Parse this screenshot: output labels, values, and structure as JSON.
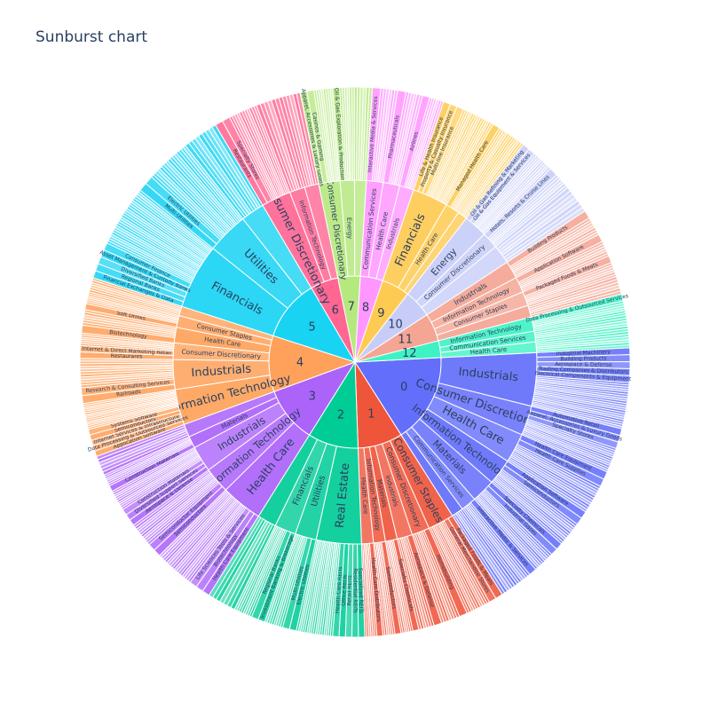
{
  "chart_data": {
    "type": "sunburst",
    "title": "Sunburst chart",
    "nodes": [
      {
        "label": "0",
        "value": 16,
        "color": "#636efa",
        "children": [
          {
            "label": "Industrials",
            "value": 4.5,
            "children": [
              "Industrial Machinery",
              "Building Products",
              "Aerospace & Defense",
              "Trading Companies & Distributors",
              "Electrical Components & Equipment"
            ]
          },
          {
            "label": "Consumer Discretionary",
            "value": 2.5,
            "children": [
              "Automotive Retail",
              "Apparel, Accessories & Luxury Goods",
              "Specialty Stores"
            ]
          },
          {
            "label": "Health Care",
            "value": 2.5,
            "children": [
              "Health Care Equipment",
              "Health Care Supplies"
            ]
          },
          {
            "label": "Information Technology",
            "value": 2.2,
            "children": [
              "Application Software",
              "Semiconductors"
            ]
          },
          {
            "label": "Materials",
            "value": 2,
            "children": [
              "Specialty Chemicals",
              "Industrial Gases"
            ]
          },
          {
            "label": "Communication Services",
            "value": 1.3,
            "children": [
              "Interactive Media & Services"
            ]
          },
          {
            "label": "",
            "value": 1.0,
            "children": []
          }
        ]
      },
      {
        "label": "1",
        "value": 8,
        "color": "#ef553b",
        "children": [
          {
            "label": "Consumer Staples",
            "value": 2.2,
            "children": [
              "Packaged Foods & Meats",
              "General Merchandise Stores"
            ]
          },
          {
            "label": "Consumer Discretionary",
            "value": 1.5,
            "children": [
              "Homebuilding"
            ]
          },
          {
            "label": "Industrials",
            "value": 1.3,
            "children": [
              "Aerospace & Defense"
            ]
          },
          {
            "label": "Materials",
            "value": 1,
            "children": [
              "Specialty Chemicals"
            ]
          },
          {
            "label": "Information Technology",
            "value": 1,
            "children": [
              "Semiconductors"
            ]
          },
          {
            "label": "Health Care",
            "value": 1,
            "children": [
              "Health Care Distributors"
            ]
          }
        ]
      },
      {
        "label": "2",
        "value": 9,
        "color": "#00cc96",
        "children": [
          {
            "label": "Real Estate",
            "value": 3.8,
            "children": [
              "Specialized REITs",
              "Residential REITs",
              "Retail REITs",
              "Office REITs",
              "Health Care REITs"
            ]
          },
          {
            "label": "Utilities",
            "value": 1.8,
            "children": [
              "Electric Utilities",
              "Multi-Utilities"
            ]
          },
          {
            "label": "Financials",
            "value": 1.8,
            "children": [
              "Investment Banking & Brokerage",
              "Regional Banks"
            ]
          },
          {
            "label": "",
            "value": 1.6,
            "children": []
          }
        ]
      },
      {
        "label": "3",
        "value": 10,
        "color": "#ab63fa",
        "children": [
          {
            "label": "Health Care",
            "value": 3.5,
            "children": [
              "Health Care Equipment",
              "Biotechnology",
              "Life Sciences Tools & Services"
            ]
          },
          {
            "label": "Information Technology",
            "value": 2.2,
            "children": [
              "Semiconductors",
              "Semiconductor Equipment"
            ]
          },
          {
            "label": "Industrials",
            "value": 2.2,
            "children": [
              "Aerospace & Defense",
              "Diversified Support Services",
              "Construction Materials"
            ]
          },
          {
            "label": "Materials",
            "value": 1,
            "children": [
              "Construction Materials"
            ]
          },
          {
            "label": "",
            "value": 1.1,
            "children": []
          }
        ]
      },
      {
        "label": "4",
        "value": 10,
        "color": "#ffa15a",
        "children": [
          {
            "label": "Information Technology",
            "value": 3.0,
            "children": [
              "Application Software",
              "Data Processing & Outsourced Services",
              "Internet Services & Infrastructure",
              "Semiconductors",
              "Systems Software"
            ]
          },
          {
            "label": "Industrials",
            "value": 2.5,
            "children": [
              "Railroads",
              "Research & Consulting Services"
            ]
          },
          {
            "label": "Consumer Discretionary",
            "value": 1.4,
            "children": [
              "Restaurants",
              "Internet & Direct Marketing Retail"
            ]
          },
          {
            "label": "Health Care",
            "value": 1.3,
            "children": [
              "Biotechnology"
            ]
          },
          {
            "label": "Consumer Staples",
            "value": 1,
            "children": [
              "Soft Drinks"
            ]
          },
          {
            "label": "",
            "value": 0.8,
            "children": []
          }
        ]
      },
      {
        "label": "5",
        "value": 11,
        "color": "#19d3f3",
        "children": [
          {
            "label": "Financials",
            "value": 5.5,
            "children": [
              "Financial Exchanges & Data",
              "Regional Banks",
              "Diversified Banks",
              "Asset Management & Custody Banks",
              "Consumer Finance"
            ]
          },
          {
            "label": "Utilities",
            "value": 3.5,
            "children": [
              "Multi-Utilities",
              "Electric Utilities"
            ]
          },
          {
            "label": "",
            "value": 2,
            "children": []
          }
        ]
      },
      {
        "label": "6",
        "value": 5,
        "color": "#ff6692",
        "children": [
          {
            "label": "Consumer Discretionary",
            "value": 2.5,
            "children": [
              "Restaurants",
              "Specialty Stores"
            ]
          },
          {
            "label": "Information Technology",
            "value": 1.3,
            "children": []
          },
          {
            "label": "",
            "value": 1.2,
            "children": []
          }
        ]
      },
      {
        "label": "7",
        "value": 4,
        "color": "#b6e880",
        "children": [
          {
            "label": "Consumer Discretionary",
            "value": 1.8,
            "children": [
              "Apparel, Accessories & Luxury Goods",
              "Casinos & Gaming"
            ]
          },
          {
            "label": "Energy",
            "value": 1.2,
            "children": [
              "Oil & Gas Exploration & Production"
            ]
          },
          {
            "label": "",
            "value": 1,
            "children": []
          }
        ]
      },
      {
        "label": "8",
        "value": 4,
        "color": "#ff97ff",
        "children": [
          {
            "label": "Communication Services",
            "value": 1.4,
            "children": [
              "Interactive Media & Services"
            ]
          },
          {
            "label": "Health Care",
            "value": 1.4,
            "children": [
              "Pharmaceuticals"
            ]
          },
          {
            "label": "Industrials",
            "value": 1.2,
            "children": [
              "Airlines"
            ]
          }
        ]
      },
      {
        "label": "9",
        "value": 5,
        "color": "#fecb52",
        "children": [
          {
            "label": "Financials",
            "value": 3.0,
            "children": [
              "Life & Health Insurance",
              "Property & Casualty Insurance",
              "Multi-line Insurance"
            ]
          },
          {
            "label": "Health Care",
            "value": 1.2,
            "children": [
              "Managed Health Care"
            ]
          },
          {
            "label": "",
            "value": 0.8,
            "children": []
          }
        ]
      },
      {
        "label": "10",
        "value": 5,
        "color": "#c8cdf8",
        "children": [
          {
            "label": "Energy",
            "value": 2.0,
            "children": [
              "Oil & Gas Refining & Marketing",
              "Oil & Gas Equipment & Services"
            ]
          },
          {
            "label": "Consumer Discretionary",
            "value": 1.4,
            "children": [
              "Hotels, Resorts & Cruise Lines"
            ]
          },
          {
            "label": "",
            "value": 1.6,
            "children": []
          }
        ]
      },
      {
        "label": "11",
        "value": 5,
        "color": "#f4a593",
        "children": [
          {
            "label": "Industrials",
            "value": 1.5,
            "children": [
              "Building Products"
            ]
          },
          {
            "label": "Information Technology",
            "value": 1.3,
            "children": [
              "Application Software"
            ]
          },
          {
            "label": "Consumer Staples",
            "value": 1.2,
            "children": [
              "Packaged Foods & Meats"
            ]
          },
          {
            "label": "",
            "value": 1.0,
            "children": []
          }
        ]
      },
      {
        "label": "12",
        "value": 3,
        "color": "#3ff2c4",
        "children": [
          {
            "label": "Information Technology",
            "value": 1.2,
            "children": [
              "Data Processing & Outsourced Services"
            ]
          },
          {
            "label": "Communication Services",
            "value": 0.9,
            "children": []
          },
          {
            "label": "Health Care",
            "value": 0.9,
            "children": []
          }
        ]
      }
    ]
  }
}
